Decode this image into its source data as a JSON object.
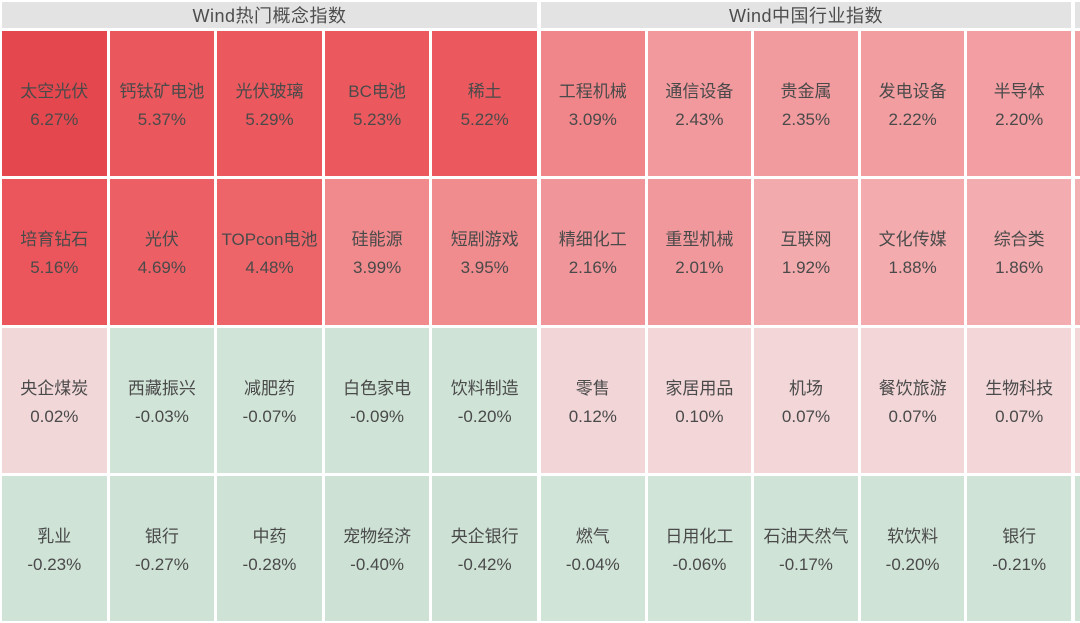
{
  "colors": {
    "page_bg": "#ffffff",
    "title_bar_bg": "#e3e3e3",
    "title_text": "#4d4d4d",
    "cell_text": "#4a4a4a",
    "max_gain_red": "#e4474d",
    "mild_gain_pink": "#f2d6d8",
    "loss_green": "#cfe3d7"
  },
  "chart_data": [
    {
      "type": "heatmap",
      "title": "Wind热门概念指数",
      "unit": "%",
      "layout": {
        "rows": 4,
        "cols": 5,
        "order": "row-major, sorted by change desc"
      },
      "items": [
        {
          "label": "太空光伏",
          "value": 6.27,
          "text": "6.27%",
          "bg": "#e4474d"
        },
        {
          "label": "钙钛矿电池",
          "value": 5.37,
          "text": "5.37%",
          "bg": "#ea575c"
        },
        {
          "label": "光伏玻璃",
          "value": 5.29,
          "text": "5.29%",
          "bg": "#eb585d"
        },
        {
          "label": "BC电池",
          "value": 5.23,
          "text": "5.23%",
          "bg": "#eb595e"
        },
        {
          "label": "稀土",
          "value": 5.22,
          "text": "5.22%",
          "bg": "#eb595e"
        },
        {
          "label": "培育钻石",
          "value": 5.16,
          "text": "5.16%",
          "bg": "#ea565b"
        },
        {
          "label": "光伏",
          "value": 4.69,
          "text": "4.69%",
          "bg": "#ec6065"
        },
        {
          "label": "TOPcon电池",
          "value": 4.48,
          "text": "4.48%",
          "bg": "#ed6569"
        },
        {
          "label": "硅能源",
          "value": 3.99,
          "text": "3.99%",
          "bg": "#f08a8d"
        },
        {
          "label": "短剧游戏",
          "value": 3.95,
          "text": "3.95%",
          "bg": "#f08b8e"
        },
        {
          "label": "央企煤炭",
          "value": 0.02,
          "text": "0.02%",
          "bg": "#f2d7d9"
        },
        {
          "label": "西藏振兴",
          "value": -0.03,
          "text": "-0.03%",
          "bg": "#d0e4d8"
        },
        {
          "label": "减肥药",
          "value": -0.07,
          "text": "-0.07%",
          "bg": "#d0e4d8"
        },
        {
          "label": "白色家电",
          "value": -0.09,
          "text": "-0.09%",
          "bg": "#cfe3d7"
        },
        {
          "label": "饮料制造",
          "value": -0.2,
          "text": "-0.20%",
          "bg": "#cfe3d7"
        },
        {
          "label": "乳业",
          "value": -0.23,
          "text": "-0.23%",
          "bg": "#cfe3d7"
        },
        {
          "label": "银行",
          "value": -0.27,
          "text": "-0.27%",
          "bg": "#cee2d6"
        },
        {
          "label": "中药",
          "value": -0.28,
          "text": "-0.28%",
          "bg": "#cee2d6"
        },
        {
          "label": "宠物经济",
          "value": -0.4,
          "text": "-0.40%",
          "bg": "#cde2d5"
        },
        {
          "label": "央企银行",
          "value": -0.42,
          "text": "-0.42%",
          "bg": "#cde2d5"
        }
      ]
    },
    {
      "type": "heatmap",
      "title": "Wind中国行业指数",
      "unit": "%",
      "layout": {
        "rows": 4,
        "cols": 5,
        "order": "row-major, sorted by change desc"
      },
      "items": [
        {
          "label": "工程机械",
          "value": 3.09,
          "text": "3.09%",
          "bg": "#f0868a"
        },
        {
          "label": "通信设备",
          "value": 2.43,
          "text": "2.43%",
          "bg": "#f1999d"
        },
        {
          "label": "贵金属",
          "value": 2.35,
          "text": "2.35%",
          "bg": "#f29b9f"
        },
        {
          "label": "发电设备",
          "value": 2.22,
          "text": "2.22%",
          "bg": "#f29ea1"
        },
        {
          "label": "半导体",
          "value": 2.2,
          "text": "2.20%",
          "bg": "#f29ea2"
        },
        {
          "label": "精细化工",
          "value": 2.16,
          "text": "2.16%",
          "bg": "#f0969a"
        },
        {
          "label": "重型机械",
          "value": 2.01,
          "text": "2.01%",
          "bg": "#f1989c"
        },
        {
          "label": "互联网",
          "value": 1.92,
          "text": "1.92%",
          "bg": "#f3aaad"
        },
        {
          "label": "文化传媒",
          "value": 1.88,
          "text": "1.88%",
          "bg": "#f3abae"
        },
        {
          "label": "综合类",
          "value": 1.86,
          "text": "1.86%",
          "bg": "#f3acaf"
        },
        {
          "label": "零售",
          "value": 0.12,
          "text": "0.12%",
          "bg": "#f2d5d7"
        },
        {
          "label": "家居用品",
          "value": 0.1,
          "text": "0.10%",
          "bg": "#f2d6d8"
        },
        {
          "label": "机场",
          "value": 0.07,
          "text": "0.07%",
          "bg": "#f2d6d8"
        },
        {
          "label": "餐饮旅游",
          "value": 0.07,
          "text": "0.07%",
          "bg": "#f2d6d8"
        },
        {
          "label": "生物科技",
          "value": 0.07,
          "text": "0.07%",
          "bg": "#f2d6d8"
        },
        {
          "label": "燃气",
          "value": -0.04,
          "text": "-0.04%",
          "bg": "#d0e4d8"
        },
        {
          "label": "日用化工",
          "value": -0.06,
          "text": "-0.06%",
          "bg": "#d0e4d8"
        },
        {
          "label": "石油天然气",
          "value": -0.17,
          "text": "-0.17%",
          "bg": "#cfe3d7"
        },
        {
          "label": "软饮料",
          "value": -0.2,
          "text": "-0.20%",
          "bg": "#cfe3d7"
        },
        {
          "label": "银行",
          "value": -0.21,
          "text": "-0.21%",
          "bg": "#cfe3d7"
        }
      ]
    }
  ],
  "edge_sliver": {
    "note": "partially visible next panel at right screen edge",
    "segments": [
      "#e3e3e3",
      "#f2a3a6",
      "#f3b0b3",
      "#f2d6d8",
      "#cfe3d7"
    ]
  }
}
